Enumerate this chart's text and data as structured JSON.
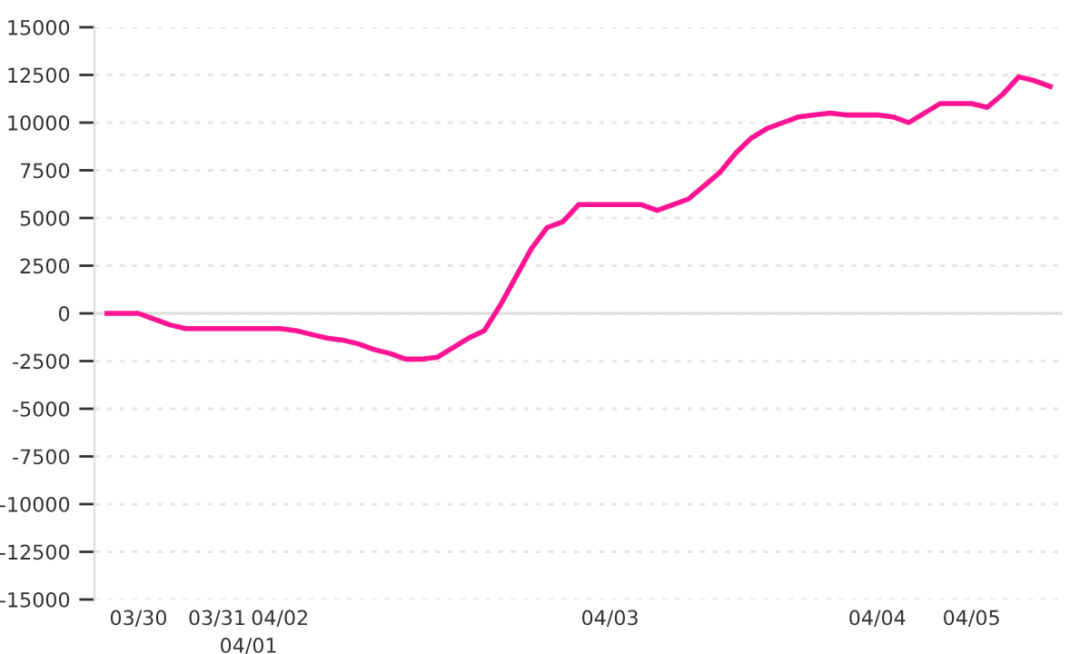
{
  "chart_data": {
    "type": "line",
    "categories": [
      null,
      null,
      "03/30",
      null,
      null,
      null,
      null,
      "03/31",
      null,
      "04/01",
      null,
      "04/02",
      null,
      null,
      null,
      null,
      null,
      null,
      null,
      null,
      null,
      null,
      null,
      null,
      null,
      null,
      null,
      null,
      null,
      null,
      null,
      null,
      "04/03",
      null,
      null,
      null,
      null,
      null,
      null,
      null,
      null,
      null,
      null,
      null,
      null,
      null,
      null,
      null,
      null,
      "04/04",
      null,
      null,
      null,
      null,
      null,
      "04/05",
      null,
      null,
      null,
      null,
      null
    ],
    "series": [
      {
        "color": "#ff1493",
        "values": [
          0,
          0,
          0,
          -300,
          -600,
          -800,
          -800,
          -800,
          -800,
          -800,
          -800,
          -800,
          -900,
          -1100,
          -1300,
          -1400,
          -1600,
          -1900,
          -2100,
          -2400,
          -2400,
          -2300,
          -1800,
          -1300,
          -900,
          400,
          1900,
          3400,
          4500,
          4800,
          5700,
          5700,
          5700,
          5700,
          5700,
          5400,
          5700,
          6000,
          6700,
          7400,
          8400,
          9200,
          9700,
          10000,
          10300,
          10400,
          10500,
          10400,
          10400,
          10400,
          10300,
          10000,
          10500,
          11000,
          11000,
          11000,
          10800,
          11500,
          12400,
          12200,
          11900
        ]
      }
    ],
    "ylim": [
      -15000,
      15000
    ],
    "yticks": [
      -15000,
      -12500,
      -10000,
      -7500,
      -5000,
      -2500,
      0,
      2500,
      5000,
      7500,
      10000,
      12500,
      15000
    ],
    "grid": "y",
    "ref_lines": [
      {
        "axis": "y",
        "value": 0,
        "color": "#dddddd"
      }
    ],
    "marker": "none",
    "line_style": "solid",
    "legend": false
  }
}
